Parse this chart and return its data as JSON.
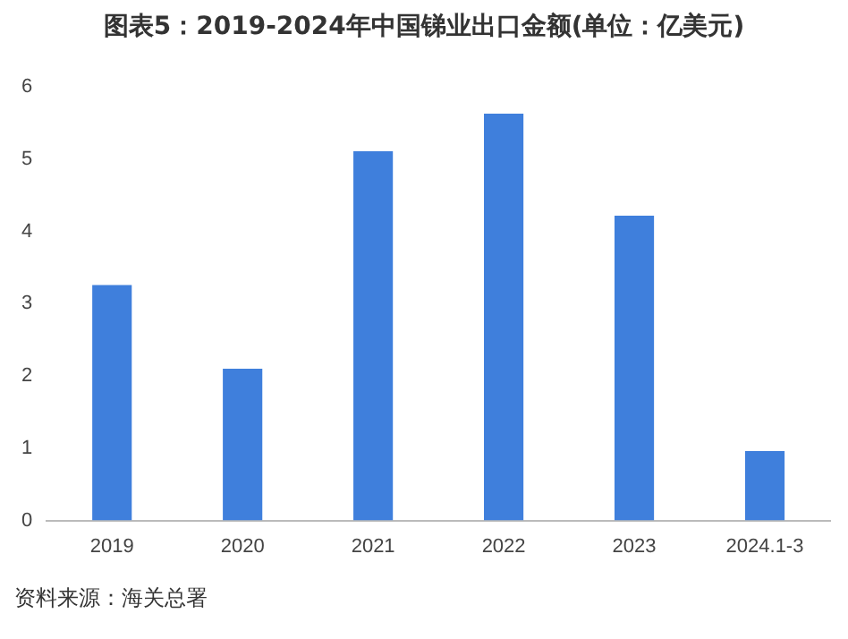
{
  "chart_data": {
    "type": "bar",
    "title": "图表5：2019-2024年中国锑业出口金额(单位：亿美元)",
    "categories": [
      "2019",
      "2020",
      "2021",
      "2022",
      "2023",
      "2024.1-3"
    ],
    "values": [
      3.26,
      2.1,
      5.11,
      5.63,
      4.22,
      0.96
    ],
    "color": "#3f7fdc",
    "ylim": [
      0,
      6
    ],
    "yticks": [
      0,
      1,
      2,
      3,
      4,
      5,
      6
    ],
    "grid": false,
    "annotations": [
      "资料来源：海关总署"
    ]
  }
}
